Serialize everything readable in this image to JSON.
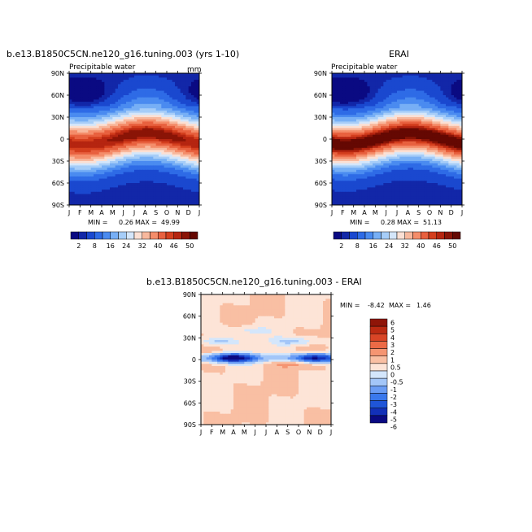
{
  "chart_data": [
    {
      "type": "heatmap",
      "title": "b.e13.B1850C5CN.ne120_g16.tuning.003 (yrs 1-10)",
      "subtitle": "Precipitable water",
      "units": "mm",
      "x_ticks": [
        "J",
        "F",
        "M",
        "A",
        "M",
        "J",
        "J",
        "A",
        "S",
        "O",
        "N",
        "D",
        "J"
      ],
      "y_ticks": [
        "90N",
        "60N",
        "30N",
        "0",
        "30S",
        "60S",
        "90S"
      ],
      "min_label": "MIN =",
      "min_value": "0.26",
      "max_label": "MAX =",
      "max_value": "49.99",
      "colorbar_labels": [
        "2",
        "8",
        "16",
        "24",
        "32",
        "40",
        "46",
        "50"
      ],
      "levels": [
        2,
        4,
        8,
        12,
        16,
        20,
        24,
        28,
        32,
        36,
        40,
        44,
        46,
        48,
        50
      ]
    },
    {
      "type": "heatmap",
      "title": "ERAI",
      "subtitle": "Precipitable water",
      "x_ticks": [
        "J",
        "F",
        "M",
        "A",
        "M",
        "J",
        "J",
        "A",
        "S",
        "O",
        "N",
        "D",
        "J"
      ],
      "y_ticks": [
        "90N",
        "60N",
        "30N",
        "0",
        "30S",
        "60S",
        "90S"
      ],
      "min_label": "MIN =",
      "min_value": "0.28",
      "max_label": "MAX =",
      "max_value": "51.13",
      "colorbar_labels": [
        "2",
        "8",
        "16",
        "24",
        "32",
        "40",
        "46",
        "50"
      ],
      "levels": [
        2,
        4,
        8,
        12,
        16,
        20,
        24,
        28,
        32,
        36,
        40,
        44,
        46,
        48,
        50
      ]
    },
    {
      "type": "heatmap",
      "title": "b.e13.B1850C5CN.ne120_g16.tuning.003 - ERAI",
      "x_ticks": [
        "J",
        "F",
        "M",
        "A",
        "M",
        "J",
        "J",
        "A",
        "S",
        "O",
        "N",
        "D",
        "J"
      ],
      "y_ticks": [
        "90N",
        "60N",
        "30N",
        "0",
        "30S",
        "60S",
        "90S"
      ],
      "min_label": "MIN =",
      "min_value": "-8.42",
      "max_label": "MAX =",
      "max_value": "1.46",
      "colorbar_labels": [
        "6",
        "5",
        "4",
        "3",
        "2",
        "1",
        "0.5",
        "0",
        "-0.5",
        "-1",
        "-2",
        "-3",
        "-4",
        "-5",
        "-6"
      ],
      "levels": [
        -6,
        -5,
        -4,
        -3,
        -2,
        -1,
        -0.5,
        0,
        0.5,
        1,
        2,
        3,
        4,
        5,
        6
      ]
    }
  ],
  "colors": {
    "seq": [
      "#0a0a82",
      "#1227a8",
      "#1a48cf",
      "#2e6be6",
      "#4a8bf0",
      "#77aff5",
      "#a6cdf8",
      "#d4e6fa",
      "#fbe0d4",
      "#f8b89d",
      "#f48d6a",
      "#e8613f",
      "#d43f1e",
      "#b52510",
      "#8a1406",
      "#650802"
    ],
    "div": [
      "#0a0a82",
      "#1230b8",
      "#1f55d8",
      "#3a78ec",
      "#6a9cf4",
      "#a3c6f8",
      "#d4e6fb",
      "#fde4d7",
      "#f9bfa3",
      "#f59572",
      "#ec6a46",
      "#d94526",
      "#bb2a12",
      "#8f1508"
    ]
  }
}
